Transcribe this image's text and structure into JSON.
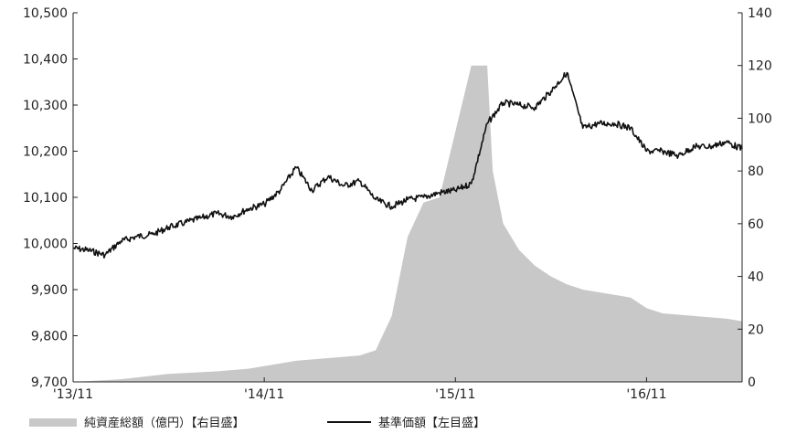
{
  "chart_data": {
    "type": "line",
    "title": "",
    "xlabel": "",
    "ylabel_left": "",
    "ylabel_right": "",
    "x_tick_labels": [
      "'13/11",
      "'14/11",
      "'15/11",
      "'16/11"
    ],
    "x_ticks": [
      "2013-11",
      "2014-11",
      "2015-11",
      "2016-11"
    ],
    "xlim": [
      "2013-11",
      "2017-05"
    ],
    "y_left": {
      "lim": [
        9700,
        10500
      ],
      "ticks": [
        9700,
        9800,
        9900,
        10000,
        10100,
        10200,
        10300,
        10400,
        10500
      ],
      "tick_labels": [
        "9,700",
        "9,800",
        "9,900",
        "10,000",
        "10,100",
        "10,200",
        "10,300",
        "10,400",
        "10,500"
      ]
    },
    "y_right": {
      "lim": [
        0,
        140
      ],
      "ticks": [
        0,
        20,
        40,
        60,
        80,
        100,
        120,
        140
      ],
      "tick_labels": [
        "0",
        "20",
        "40",
        "60",
        "80",
        "100",
        "120",
        "140"
      ]
    },
    "grid": false,
    "legend_position": "bottom",
    "series": [
      {
        "name": "純資産総額（億円）【右目盛】",
        "kind": "area",
        "axis": "right",
        "color": "#c8c8c8",
        "x": [
          "2013-11",
          "2014-02",
          "2014-05",
          "2014-08",
          "2014-10",
          "2014-11",
          "2015-01",
          "2015-03",
          "2015-05",
          "2015-06",
          "2015-07",
          "2015-08",
          "2015-09",
          "2015-10",
          "2015-11",
          "2015-12",
          "2016-01",
          "2016-01",
          "2016-02",
          "2016-03",
          "2016-04",
          "2016-05",
          "2016-06",
          "2016-07",
          "2016-08",
          "2016-09",
          "2016-10",
          "2016-11",
          "2016-12",
          "2017-02",
          "2017-04",
          "2017-05"
        ],
        "values": [
          0,
          1,
          3,
          4,
          5,
          6,
          8,
          9,
          10,
          12,
          25,
          55,
          68,
          70,
          95,
          120,
          120,
          80,
          60,
          50,
          44,
          40,
          37,
          35,
          34,
          33,
          32,
          28,
          26,
          25,
          24,
          23
        ]
      },
      {
        "name": "基準価額【左目盛】",
        "kind": "line",
        "axis": "left",
        "color": "#111111",
        "x": [
          "2013-11",
          "2013-12",
          "2014-01",
          "2014-02",
          "2014-03",
          "2014-04",
          "2014-05",
          "2014-06",
          "2014-07",
          "2014-08",
          "2014-09",
          "2014-10",
          "2014-11",
          "2014-12",
          "2015-01",
          "2015-02",
          "2015-03",
          "2015-04",
          "2015-05",
          "2015-06",
          "2015-07",
          "2015-08",
          "2015-09",
          "2015-10",
          "2015-11",
          "2015-12",
          "2016-01",
          "2016-02",
          "2016-03",
          "2016-04",
          "2016-05",
          "2016-06",
          "2016-07",
          "2016-08",
          "2016-09",
          "2016-10",
          "2016-11",
          "2016-12",
          "2017-01",
          "2017-02",
          "2017-03",
          "2017-04",
          "2017-05"
        ],
        "values": [
          9990,
          9985,
          9975,
          10005,
          10015,
          10020,
          10035,
          10045,
          10055,
          10065,
          10058,
          10075,
          10085,
          10115,
          10165,
          10115,
          10145,
          10125,
          10135,
          10095,
          10080,
          10095,
          10100,
          10110,
          10115,
          10130,
          10260,
          10305,
          10300,
          10295,
          10330,
          10370,
          10250,
          10260,
          10260,
          10250,
          10200,
          10200,
          10190,
          10210,
          10210,
          10220,
          10205
        ]
      }
    ]
  }
}
